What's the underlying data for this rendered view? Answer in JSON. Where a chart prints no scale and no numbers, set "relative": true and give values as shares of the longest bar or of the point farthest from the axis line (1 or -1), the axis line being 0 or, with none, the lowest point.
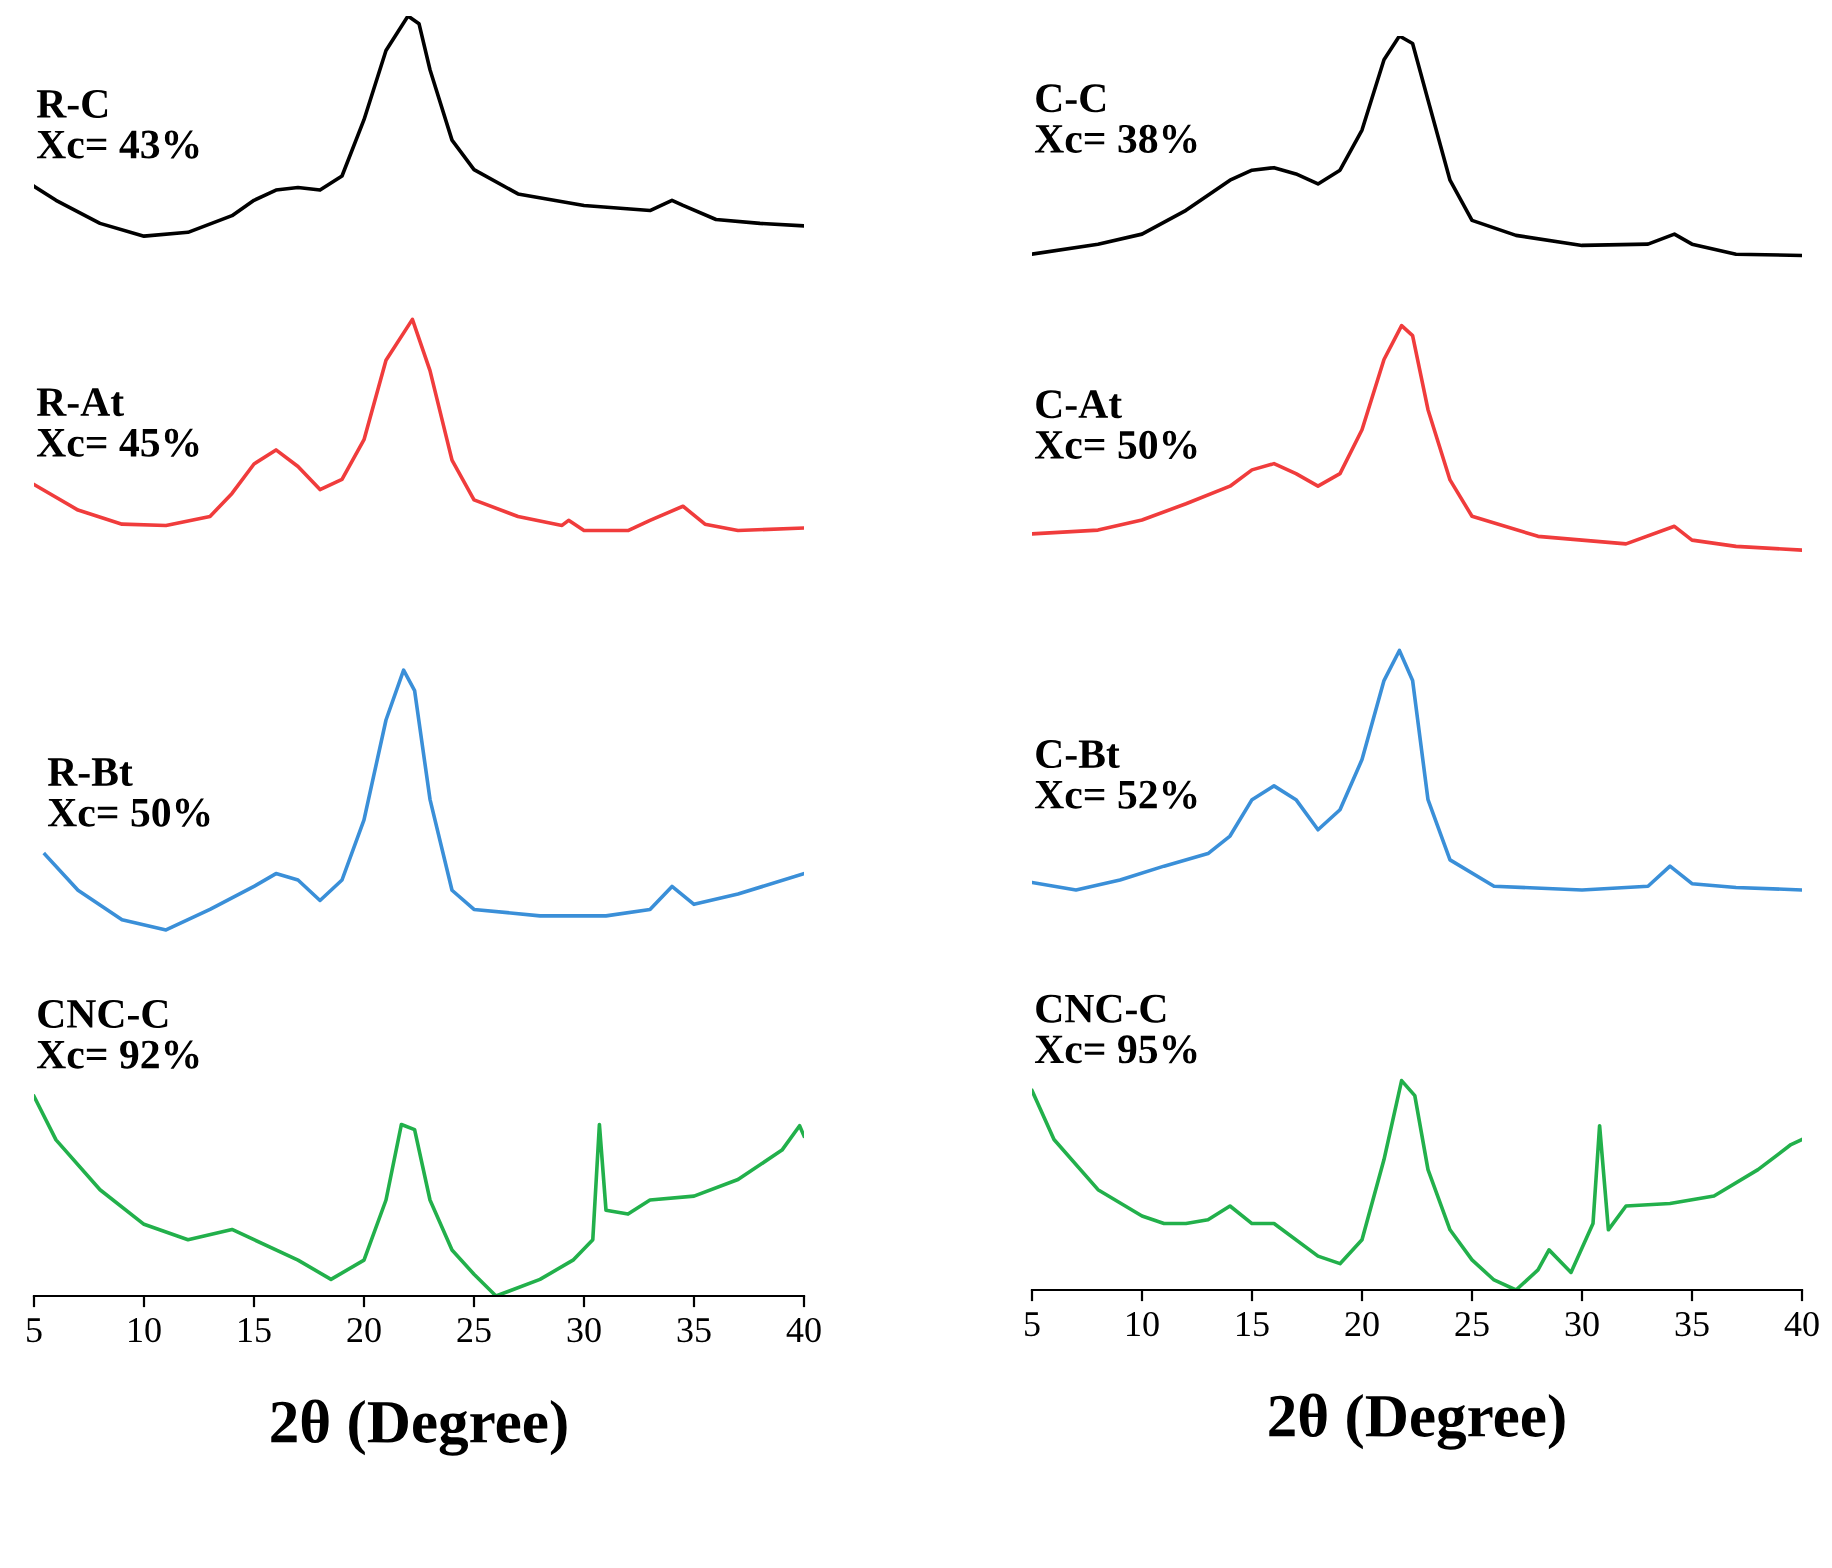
{
  "chart_data": [
    {
      "type": "line",
      "relative": true,
      "xlabel": "2θ (Degree)",
      "xlim": [
        5,
        40
      ],
      "xticks": [
        5,
        10,
        15,
        20,
        25,
        30,
        35,
        40
      ],
      "tick_labels": "x",
      "grid": false,
      "legend": false,
      "series": [
        {
          "name": "R-C\nXc= 43%",
          "color": "#000000",
          "x": [
            5,
            6,
            8,
            10,
            12,
            14,
            15,
            16,
            17,
            18,
            19,
            20,
            21,
            22,
            22.5,
            23,
            24,
            25,
            27,
            30,
            33,
            34,
            34.5,
            36,
            38,
            40
          ],
          "values": [
            0.867,
            0.856,
            0.838,
            0.828,
            0.831,
            0.844,
            0.856,
            0.864,
            0.866,
            0.864,
            0.875,
            0.919,
            0.973,
            1.0,
            0.994,
            0.958,
            0.903,
            0.88,
            0.861,
            0.852,
            0.848,
            0.856,
            0.852,
            0.841,
            0.838,
            0.836
          ]
        },
        {
          "name": "R-At\nXc= 45%",
          "color": "#f03c3c",
          "x": [
            5,
            7,
            9,
            11,
            13,
            14,
            15,
            16,
            17,
            18,
            19,
            20,
            21,
            22.2,
            23,
            24,
            25,
            27,
            29,
            29.3,
            30,
            32,
            33,
            34.5,
            35.5,
            37,
            40
          ],
          "values": [
            0.634,
            0.614,
            0.603,
            0.602,
            0.609,
            0.627,
            0.65,
            0.661,
            0.648,
            0.63,
            0.638,
            0.669,
            0.731,
            0.763,
            0.723,
            0.653,
            0.622,
            0.609,
            0.602,
            0.606,
            0.598,
            0.598,
            0.606,
            0.617,
            0.603,
            0.598,
            0.6
          ]
        },
        {
          "name": "R-Bt\nXc= 50%",
          "color": "#3a8fd8",
          "x": [
            5.5,
            7,
            9,
            11,
            13,
            15,
            16,
            17,
            18,
            19,
            20,
            21,
            21.8,
            22.3,
            23,
            24,
            25,
            28,
            31,
            33,
            34,
            35,
            37,
            40
          ],
          "values": [
            0.345,
            0.317,
            0.294,
            0.286,
            0.302,
            0.32,
            0.33,
            0.325,
            0.309,
            0.325,
            0.372,
            0.45,
            0.489,
            0.473,
            0.388,
            0.317,
            0.302,
            0.297,
            0.297,
            0.302,
            0.32,
            0.306,
            0.314,
            0.33
          ]
        },
        {
          "name": "CNC-C\nXc= 92%",
          "color": "#22b04b",
          "x": [
            5,
            6,
            8,
            10,
            12,
            14,
            15,
            17,
            18.5,
            20,
            21,
            21.7,
            22.3,
            23,
            24,
            25,
            26,
            28,
            29.5,
            30.4,
            30.7,
            31,
            32,
            33,
            35,
            37,
            39,
            39.8,
            40
          ],
          "values": [
            0.156,
            0.122,
            0.083,
            0.056,
            0.044,
            0.052,
            0.044,
            0.028,
            0.013,
            0.028,
            0.075,
            0.134,
            0.13,
            0.075,
            0.036,
            0.017,
            0.0,
            0.013,
            0.028,
            0.044,
            0.134,
            0.067,
            0.064,
            0.075,
            0.078,
            0.091,
            0.114,
            0.133,
            0.125
          ]
        }
      ]
    },
    {
      "type": "line",
      "relative": true,
      "xlabel": "2θ (Degree)",
      "xlim": [
        5,
        40
      ],
      "xticks": [
        5,
        10,
        15,
        20,
        25,
        30,
        35,
        40
      ],
      "tick_labels": "x",
      "grid": false,
      "legend": false,
      "series": [
        {
          "name": "C-C\nXc= 38%",
          "color": "#000000",
          "x": [
            5,
            8,
            10,
            12,
            14,
            15,
            16,
            17,
            18,
            19,
            20,
            21,
            21.7,
            22.3,
            23,
            24,
            25,
            27,
            30,
            33,
            34.2,
            35,
            37,
            40
          ],
          "values": [
            0.826,
            0.834,
            0.842,
            0.861,
            0.885,
            0.893,
            0.895,
            0.89,
            0.882,
            0.893,
            0.925,
            0.981,
            1.0,
            0.994,
            0.949,
            0.885,
            0.853,
            0.841,
            0.833,
            0.834,
            0.842,
            0.834,
            0.826,
            0.825
          ]
        },
        {
          "name": "C-At\nXc= 50%",
          "color": "#f03c3c",
          "x": [
            5,
            8,
            10,
            12,
            14,
            15,
            16,
            17,
            18,
            19,
            20,
            21,
            21.8,
            22.3,
            23,
            24,
            25,
            28,
            32,
            34.2,
            35,
            37,
            40
          ],
          "values": [
            0.603,
            0.606,
            0.614,
            0.627,
            0.641,
            0.654,
            0.659,
            0.651,
            0.641,
            0.651,
            0.686,
            0.742,
            0.769,
            0.761,
            0.702,
            0.646,
            0.617,
            0.601,
            0.595,
            0.609,
            0.598,
            0.593,
            0.59
          ]
        },
        {
          "name": "C-Bt\nXc= 52%",
          "color": "#3a8fd8",
          "x": [
            5,
            7,
            9,
            11,
            13,
            14,
            15,
            16,
            17,
            18,
            19,
            20,
            21,
            21.7,
            22.3,
            23,
            24,
            26,
            30,
            33,
            34,
            35,
            37,
            40
          ],
          "values": [
            0.325,
            0.319,
            0.327,
            0.338,
            0.348,
            0.362,
            0.391,
            0.402,
            0.391,
            0.367,
            0.383,
            0.423,
            0.486,
            0.51,
            0.486,
            0.391,
            0.343,
            0.322,
            0.319,
            0.322,
            0.338,
            0.324,
            0.321,
            0.319
          ]
        },
        {
          "name": "CNC-C\nXc= 95%",
          "color": "#22b04b",
          "x": [
            5,
            6,
            8,
            10,
            11,
            12,
            13,
            14,
            15,
            16,
            18,
            19,
            20,
            21,
            21.8,
            22.4,
            23,
            24,
            25,
            26,
            27,
            28,
            28.5,
            29.5,
            30.5,
            30.8,
            31.2,
            32,
            34,
            36,
            38,
            39.5,
            40
          ],
          "values": [
            0.159,
            0.12,
            0.08,
            0.059,
            0.053,
            0.053,
            0.056,
            0.067,
            0.053,
            0.053,
            0.027,
            0.021,
            0.04,
            0.104,
            0.167,
            0.155,
            0.096,
            0.048,
            0.024,
            0.008,
            0.0,
            0.016,
            0.032,
            0.014,
            0.053,
            0.131,
            0.048,
            0.067,
            0.069,
            0.075,
            0.096,
            0.116,
            0.12
          ]
        }
      ]
    }
  ]
}
